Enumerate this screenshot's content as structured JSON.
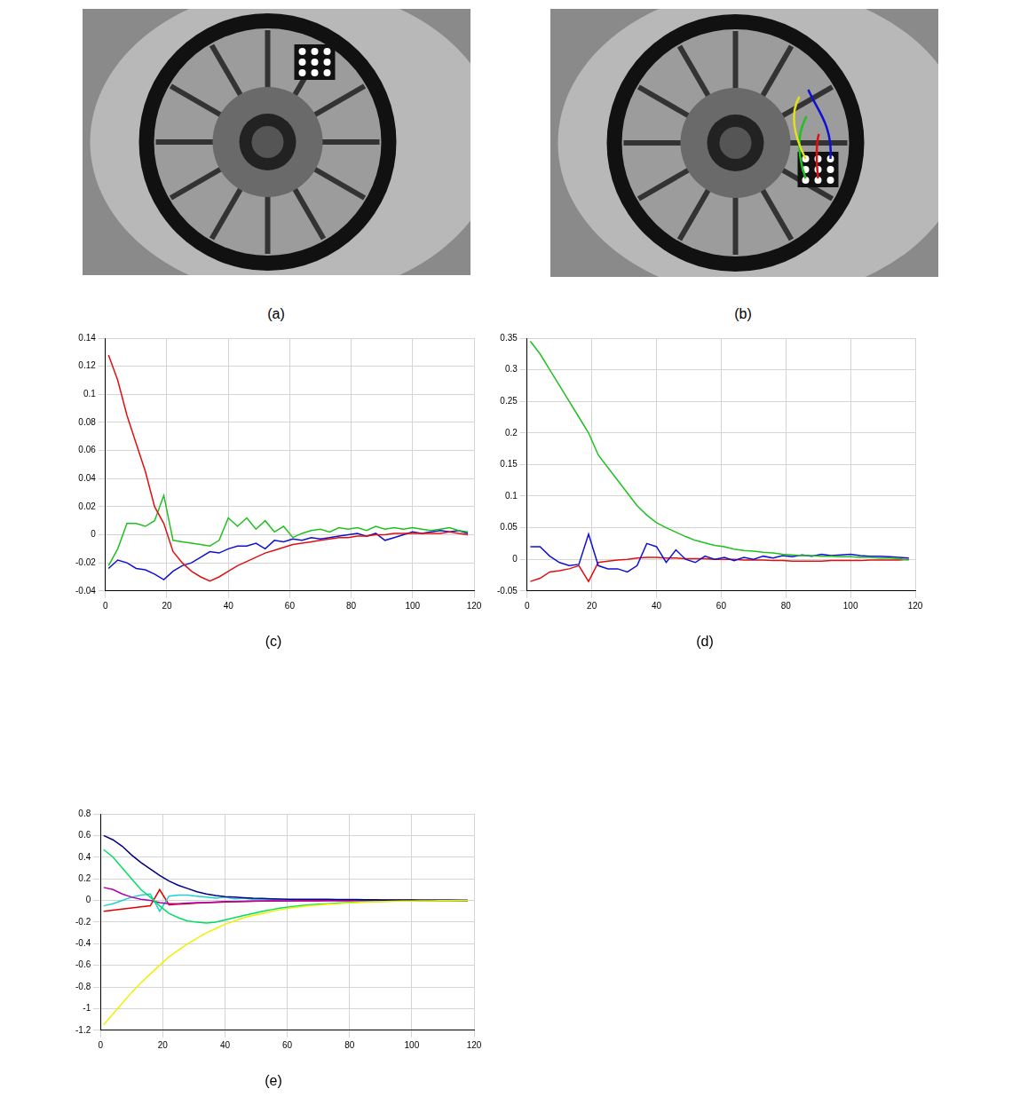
{
  "images": [
    {
      "label": "(a)"
    },
    {
      "label": "(b)"
    }
  ],
  "chart_data": [
    {
      "type": "line",
      "title": "(c)",
      "grid": true,
      "x": [
        1,
        4,
        7,
        10,
        13,
        16,
        19,
        22,
        25,
        28,
        31,
        34,
        37,
        40,
        43,
        46,
        49,
        52,
        55,
        58,
        61,
        64,
        67,
        70,
        73,
        76,
        79,
        82,
        85,
        88,
        91,
        94,
        97,
        100,
        103,
        106,
        109,
        112,
        115,
        118
      ],
      "xlim": [
        0,
        120
      ],
      "xticks": [
        0,
        20,
        40,
        60,
        80,
        100,
        120
      ],
      "ylim": [
        -0.04,
        0.14
      ],
      "yticks": [
        -0.04,
        -0.02,
        0,
        0.02,
        0.04,
        0.06,
        0.08,
        0.1,
        0.12,
        0.14
      ],
      "series": [
        {
          "color": "#e01010",
          "values": [
            0.128,
            0.11,
            0.085,
            0.065,
            0.045,
            0.02,
            0.008,
            -0.012,
            -0.02,
            -0.026,
            -0.03,
            -0.033,
            -0.03,
            -0.026,
            -0.022,
            -0.019,
            -0.016,
            -0.013,
            -0.011,
            -0.009,
            -0.007,
            -0.006,
            -0.005,
            -0.004,
            -0.003,
            -0.002,
            -0.002,
            -0.001,
            -0.001,
            0,
            0,
            0.001,
            0.001,
            0.001,
            0.001,
            0.001,
            0.001,
            0.002,
            0.001,
            0
          ]
        },
        {
          "color": "#20c020",
          "values": [
            -0.022,
            -0.01,
            0.008,
            0.008,
            0.006,
            0.01,
            0.028,
            -0.004,
            -0.005,
            -0.006,
            -0.007,
            -0.008,
            -0.004,
            0.012,
            0.006,
            0.012,
            0.004,
            0.01,
            0.002,
            0.006,
            -0.002,
            0.001,
            0.003,
            0.004,
            0.002,
            0.005,
            0.004,
            0.005,
            0.003,
            0.006,
            0.004,
            0.005,
            0.004,
            0.005,
            0.004,
            0.003,
            0.004,
            0.005,
            0.003,
            0.002
          ]
        },
        {
          "color": "#1010d0",
          "values": [
            -0.024,
            -0.018,
            -0.02,
            -0.024,
            -0.025,
            -0.028,
            -0.032,
            -0.026,
            -0.022,
            -0.02,
            -0.016,
            -0.012,
            -0.013,
            -0.01,
            -0.008,
            -0.008,
            -0.006,
            -0.01,
            -0.004,
            -0.005,
            -0.003,
            -0.004,
            -0.002,
            -0.003,
            -0.002,
            -0.001,
            0,
            0.001,
            -0.001,
            0.001,
            -0.004,
            -0.002,
            0,
            0.002,
            0.001,
            0.002,
            0.003,
            0.002,
            0.003,
            0.001
          ]
        }
      ]
    },
    {
      "type": "line",
      "title": "(d)",
      "grid": true,
      "x": [
        1,
        4,
        7,
        10,
        13,
        16,
        19,
        22,
        25,
        28,
        31,
        34,
        37,
        40,
        43,
        46,
        49,
        52,
        55,
        58,
        61,
        64,
        67,
        70,
        73,
        76,
        79,
        82,
        85,
        88,
        91,
        94,
        97,
        100,
        103,
        106,
        109,
        112,
        115,
        118
      ],
      "xlim": [
        0,
        120
      ],
      "xticks": [
        0,
        20,
        40,
        60,
        80,
        100,
        120
      ],
      "ylim": [
        -0.05,
        0.35
      ],
      "yticks": [
        -0.05,
        0,
        0.05,
        0.1,
        0.15,
        0.2,
        0.25,
        0.3,
        0.35
      ],
      "series": [
        {
          "color": "#20c020",
          "values": [
            0.345,
            0.325,
            0.3,
            0.275,
            0.25,
            0.225,
            0.2,
            0.165,
            0.145,
            0.125,
            0.105,
            0.085,
            0.07,
            0.058,
            0.05,
            0.043,
            0.036,
            0.03,
            0.026,
            0.022,
            0.02,
            0.016,
            0.014,
            0.013,
            0.011,
            0.01,
            0.008,
            0.007,
            0.006,
            0.006,
            0.005,
            0.005,
            0.004,
            0.004,
            0.003,
            0.003,
            0.002,
            0.002,
            0.001,
            -0.001
          ]
        },
        {
          "color": "#1010d0",
          "values": [
            0.02,
            0.02,
            0.005,
            -0.005,
            -0.01,
            -0.008,
            0.04,
            -0.01,
            -0.015,
            -0.015,
            -0.02,
            -0.01,
            0.025,
            0.02,
            -0.005,
            0.015,
            0,
            -0.005,
            0.005,
            0,
            0.003,
            -0.002,
            0.003,
            0,
            0.005,
            0.002,
            0.006,
            0.004,
            0.007,
            0.005,
            0.008,
            0.006,
            0.007,
            0.008,
            0.006,
            0.005,
            0.005,
            0.004,
            0.003,
            0.002
          ]
        },
        {
          "color": "#e01010",
          "values": [
            -0.035,
            -0.03,
            -0.02,
            -0.018,
            -0.015,
            -0.01,
            -0.035,
            -0.005,
            -0.003,
            -0.001,
            0,
            0.002,
            0.003,
            0.003,
            0.002,
            0.002,
            0.001,
            0.001,
            0.001,
            0,
            0,
            0,
            -0.001,
            -0.001,
            -0.001,
            -0.002,
            -0.002,
            -0.003,
            -0.003,
            -0.003,
            -0.003,
            -0.002,
            -0.002,
            -0.002,
            -0.002,
            -0.001,
            -0.001,
            -0.001,
            -0.001,
            0
          ]
        }
      ]
    },
    {
      "type": "line",
      "title": "(e)",
      "grid": true,
      "x": [
        1,
        4,
        7,
        10,
        13,
        16,
        19,
        22,
        25,
        28,
        31,
        34,
        37,
        40,
        43,
        46,
        49,
        52,
        55,
        58,
        61,
        64,
        67,
        70,
        73,
        76,
        79,
        82,
        85,
        88,
        91,
        94,
        97,
        100,
        103,
        106,
        109,
        112,
        115,
        118
      ],
      "xlim": [
        0,
        120
      ],
      "xticks": [
        0,
        20,
        40,
        60,
        80,
        100,
        120
      ],
      "ylim": [
        -1.2,
        0.8
      ],
      "yticks": [
        -1.2,
        -1,
        -0.8,
        -0.6,
        -0.4,
        -0.2,
        0,
        0.2,
        0.4,
        0.6,
        0.8
      ],
      "series": [
        {
          "color": "#f0f000",
          "values": [
            -1.15,
            -1.05,
            -0.95,
            -0.85,
            -0.76,
            -0.68,
            -0.6,
            -0.52,
            -0.46,
            -0.4,
            -0.35,
            -0.3,
            -0.26,
            -0.22,
            -0.19,
            -0.16,
            -0.14,
            -0.12,
            -0.1,
            -0.085,
            -0.07,
            -0.06,
            -0.05,
            -0.042,
            -0.035,
            -0.03,
            -0.025,
            -0.02,
            -0.016,
            -0.013,
            -0.01,
            -0.008,
            -0.006,
            -0.005,
            -0.004,
            -0.003,
            -0.002,
            -0.001,
            -0.001,
            0
          ]
        },
        {
          "color": "#000080",
          "values": [
            0.6,
            0.56,
            0.5,
            0.42,
            0.35,
            0.29,
            0.23,
            0.18,
            0.14,
            0.11,
            0.08,
            0.06,
            0.045,
            0.035,
            0.03,
            0.025,
            0.02,
            0.018,
            0.015,
            0.012,
            0.01,
            0.01,
            0.01,
            0.01,
            0.01,
            0.008,
            0.008,
            0.008,
            0.006,
            0.006,
            0.005,
            0.005,
            0.004,
            0.004,
            0.003,
            0.003,
            0.002,
            0.002,
            0.001,
            0
          ]
        },
        {
          "color": "#00e060",
          "values": [
            0.47,
            0.4,
            0.3,
            0.2,
            0.1,
            0.03,
            -0.05,
            -0.12,
            -0.16,
            -0.19,
            -0.2,
            -0.21,
            -0.2,
            -0.18,
            -0.16,
            -0.14,
            -0.12,
            -0.1,
            -0.085,
            -0.07,
            -0.06,
            -0.05,
            -0.04,
            -0.035,
            -0.03,
            -0.025,
            -0.02,
            -0.016,
            -0.013,
            -0.01,
            -0.008,
            -0.006,
            -0.005,
            -0.004,
            -0.003,
            -0.002,
            -0.002,
            -0.001,
            -0.001,
            0
          ]
        },
        {
          "color": "#b000b0",
          "values": [
            0.12,
            0.1,
            0.06,
            0.03,
            0.01,
            0,
            -0.02,
            -0.03,
            -0.03,
            -0.025,
            -0.02,
            -0.02,
            -0.015,
            -0.01,
            -0.01,
            -0.008,
            -0.006,
            -0.005,
            -0.004,
            -0.003,
            -0.003,
            -0.002,
            -0.002,
            -0.002,
            -0.001,
            -0.001,
            -0.001,
            0,
            0,
            0,
            0,
            0,
            0.001,
            0.001,
            0.001,
            0.001,
            0.001,
            0,
            0,
            0
          ]
        },
        {
          "color": "#20d0d0",
          "values": [
            -0.05,
            -0.03,
            0,
            0.03,
            0.05,
            0.06,
            -0.1,
            0.04,
            0.05,
            0.05,
            0.04,
            0.03,
            0.02,
            0.03,
            0.015,
            0.02,
            0.01,
            0.01,
            0.01,
            0.005,
            0.005,
            0.004,
            0.004,
            0.003,
            0.003,
            0.002,
            0.002,
            0.002,
            0.001,
            0.001,
            0.001,
            0.001,
            0,
            0,
            0,
            0,
            0,
            0,
            0,
            0
          ]
        },
        {
          "color": "#e00000",
          "values": [
            -0.1,
            -0.09,
            -0.08,
            -0.07,
            -0.06,
            -0.05,
            0.1,
            -0.04,
            -0.035,
            -0.03,
            -0.025,
            -0.02,
            -0.018,
            -0.015,
            -0.012,
            -0.01,
            -0.008,
            -0.007,
            -0.006,
            -0.005,
            -0.004,
            -0.004,
            -0.003,
            -0.003,
            -0.002,
            -0.002,
            -0.002,
            -0.001,
            -0.001,
            -0.001,
            0,
            0,
            0,
            0,
            0,
            0,
            0,
            0,
            0,
            0
          ]
        }
      ]
    }
  ]
}
